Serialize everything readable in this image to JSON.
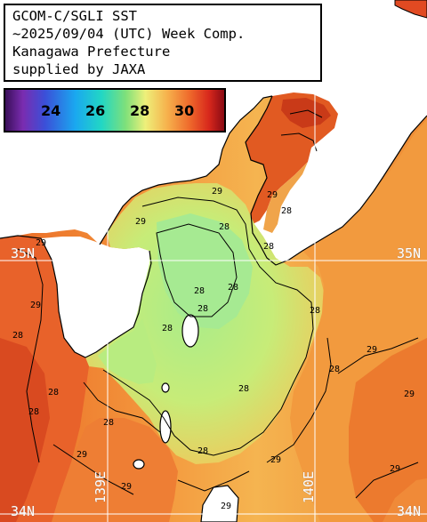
{
  "title": {
    "line1": "GCOM-C/SGLI SST",
    "line2": "~2025/09/04 (UTC) Week Comp.",
    "line3": "Kanagawa Prefecture",
    "line4": "supplied by JAXA"
  },
  "colorbar": {
    "ticks": [
      "24",
      "26",
      "28",
      "30"
    ]
  },
  "contour_labels": [
    "29",
    "28",
    "29",
    "28",
    "28",
    "28",
    "29",
    "28",
    "28",
    "28",
    "28",
    "29",
    "28",
    "29",
    "28",
    "28",
    "28",
    "28",
    "29",
    "29",
    "29",
    "29",
    "28",
    "29",
    "29",
    "28",
    "29"
  ],
  "coordinates": {
    "lat_35": "35N",
    "lat_35_right": "35N",
    "lat_34": "34N",
    "lat_34_right": "34N",
    "lon_139": "139E",
    "lon_140": "140E"
  },
  "colors": {
    "land": "#ffffff",
    "sea_warm": "#ef7a30",
    "sea_mid": "#f5b04c",
    "sea_cool": "#b6ea7a",
    "gridline": "#ffffff"
  }
}
